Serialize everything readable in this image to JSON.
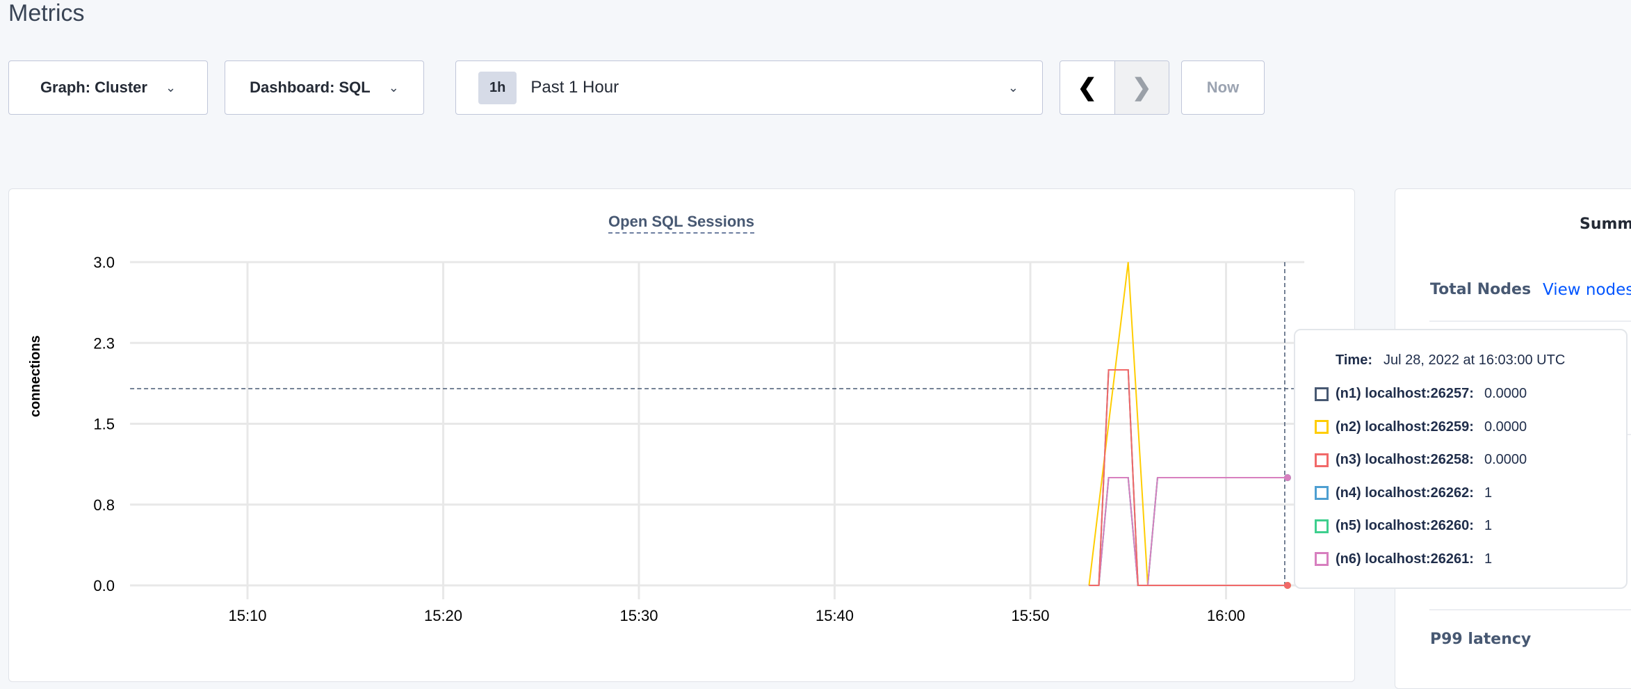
{
  "page_title": "Metrics",
  "toolbar": {
    "graph_label": "Graph: Cluster",
    "dashboard_label": "Dashboard: SQL",
    "range_badge": "1h",
    "range_label": "Past 1 Hour",
    "prev_icon": "chevron-left-icon",
    "next_icon": "chevron-right-icon",
    "now_label": "Now"
  },
  "chart_data": {
    "type": "line",
    "title": "Open SQL Sessions",
    "ylabel": "connections",
    "ylim": [
      0,
      3
    ],
    "y_ticks": [
      "0.0",
      "0.8",
      "1.5",
      "2.3",
      "3.0"
    ],
    "y_tick_values": [
      0,
      0.75,
      1.5,
      2.25,
      3
    ],
    "x_ticks": [
      "15:10",
      "15:20",
      "15:30",
      "15:40",
      "15:50",
      "16:00"
    ],
    "x_range": [
      "15:04",
      "16:04"
    ],
    "grid": true,
    "hover_time": "16:03",
    "series": [
      {
        "name": "(n1) localhost:26257",
        "color": "#475872",
        "x": [
          "15:53:00",
          "15:53:30",
          "15:54:00",
          "15:55:00",
          "15:55:30",
          "15:56:00",
          "16:03:00"
        ],
        "y": [
          0,
          0,
          2,
          2,
          0,
          0,
          0
        ]
      },
      {
        "name": "(n4) localhost:26262",
        "color": "#4e9fd1",
        "x": [
          "15:53:00",
          "15:53:30",
          "15:54:00",
          "15:55:00",
          "15:55:30",
          "15:56:00",
          "15:56:30",
          "16:03:00"
        ],
        "y": [
          0,
          0,
          1,
          1,
          0,
          0,
          1,
          1
        ]
      },
      {
        "name": "(n5) localhost:26260",
        "color": "#3ecf8e",
        "x": [
          "15:53:00",
          "15:53:30",
          "15:54:00",
          "15:55:00",
          "15:55:30",
          "15:56:00",
          "15:56:30",
          "16:03:00"
        ],
        "y": [
          0,
          0,
          1,
          1,
          0,
          0,
          1,
          1
        ]
      },
      {
        "name": "(n2) localhost:26259",
        "color": "#ffcd02",
        "x": [
          "15:53:00",
          "15:55:00",
          "15:56:00",
          "16:03:00"
        ],
        "y": [
          0,
          3,
          0,
          0
        ]
      },
      {
        "name": "(n6) localhost:26261",
        "color": "#d77fbf",
        "x": [
          "15:53:00",
          "15:53:30",
          "15:54:00",
          "15:55:00",
          "15:55:30",
          "15:56:00",
          "15:56:30",
          "16:03:00"
        ],
        "y": [
          0,
          0,
          1,
          1,
          0,
          0,
          1,
          1
        ]
      },
      {
        "name": "(n3) localhost:26258",
        "color": "#f16969",
        "x": [
          "15:53:00",
          "15:53:30",
          "15:54:00",
          "15:55:00",
          "15:55:30",
          "15:56:00",
          "16:03:00"
        ],
        "y": [
          0,
          0,
          2,
          2,
          0,
          0,
          0
        ]
      }
    ]
  },
  "tooltip": {
    "time_label": "Time:",
    "time_value": "Jul 28, 2022 at 16:03:00 UTC",
    "rows": [
      {
        "label": "(n1) localhost:26257:",
        "value": "0.0000",
        "color": "#475872"
      },
      {
        "label": "(n2) localhost:26259:",
        "value": "0.0000",
        "color": "#ffcd02"
      },
      {
        "label": "(n3) localhost:26258:",
        "value": "0.0000",
        "color": "#f16969"
      },
      {
        "label": "(n4) localhost:26262:",
        "value": "1",
        "color": "#4e9fd1"
      },
      {
        "label": "(n5) localhost:26260:",
        "value": "1",
        "color": "#3ecf8e"
      },
      {
        "label": "(n6) localhost:26261:",
        "value": "1",
        "color": "#d77fbf"
      }
    ]
  },
  "summary": {
    "heading": "Summ",
    "total_nodes_label": "Total Nodes",
    "view_nodes_link": "View nodes",
    "p99_label": "P99 latency"
  }
}
